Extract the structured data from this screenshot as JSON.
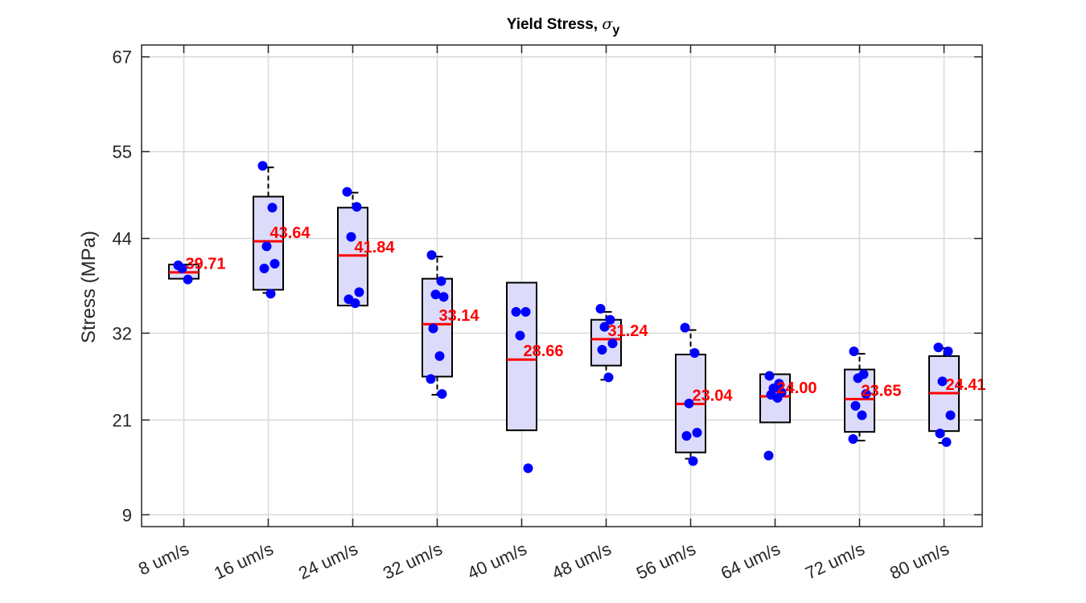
{
  "chart_data": {
    "type": "box",
    "title": "Yield Stress, ",
    "title_symbol": "σ",
    "title_subscript": "y",
    "ylabel": "Stress (MPa)",
    "xlabel": "",
    "ylim": [
      7.5,
      68.5
    ],
    "yticks": [
      9,
      21,
      32,
      44,
      55,
      67
    ],
    "grid": true,
    "colors": {
      "box_fill": "#dcdcfa",
      "box_edge": "#000000",
      "median": "#ff0000",
      "points": "#0000ff",
      "grid": "#d9d9d9"
    },
    "categories": [
      "8 um/s",
      "16 um/s",
      "24 um/s",
      "32 um/s",
      "40 um/s",
      "48 um/s",
      "56 um/s",
      "64 um/s",
      "72 um/s",
      "80 um/s"
    ],
    "boxes": [
      {
        "q1": 38.9,
        "q3": 40.7,
        "median": 39.71,
        "whisker_low": 38.9,
        "whisker_high": 40.7,
        "median_label": "39.71"
      },
      {
        "q1": 37.5,
        "q3": 49.3,
        "median": 43.64,
        "whisker_low": 37.1,
        "whisker_high": 53.0,
        "median_label": "43.64"
      },
      {
        "q1": 35.5,
        "q3": 47.9,
        "median": 41.84,
        "whisker_low": 35.5,
        "whisker_high": 49.8,
        "median_label": "41.84"
      },
      {
        "q1": 26.5,
        "q3": 38.9,
        "median": 33.14,
        "whisker_low": 24.2,
        "whisker_high": 41.7,
        "median_label": "33.14"
      },
      {
        "q1": 19.7,
        "q3": 38.4,
        "median": 28.66,
        "whisker_low": 19.7,
        "whisker_high": 38.4,
        "median_label": "28.66"
      },
      {
        "q1": 27.9,
        "q3": 33.7,
        "median": 31.24,
        "whisker_low": 26.1,
        "whisker_high": 34.7,
        "median_label": "31.24"
      },
      {
        "q1": 16.9,
        "q3": 29.3,
        "median": 23.04,
        "whisker_low": 16.1,
        "whisker_high": 32.4,
        "median_label": "23.04"
      },
      {
        "q1": 20.7,
        "q3": 26.8,
        "median": 24.0,
        "whisker_low": 20.7,
        "whisker_high": 26.8,
        "median_label": "24.00"
      },
      {
        "q1": 19.5,
        "q3": 27.4,
        "median": 23.65,
        "whisker_low": 18.4,
        "whisker_high": 29.4,
        "median_label": "23.65"
      },
      {
        "q1": 19.6,
        "q3": 29.1,
        "median": 24.41,
        "whisker_low": 18.1,
        "whisker_high": 30.1,
        "median_label": "24.41"
      }
    ],
    "points": [
      [
        40.6,
        38.8,
        40.2
      ],
      [
        53.2,
        47.9,
        43.0,
        40.8,
        40.2,
        37.0
      ],
      [
        49.9,
        48.0,
        44.2,
        37.2,
        36.3,
        35.8
      ],
      [
        41.9,
        38.6,
        36.9,
        36.6,
        32.6,
        29.1,
        26.2,
        24.3
      ],
      [
        34.7,
        34.7,
        31.7,
        14.9
      ],
      [
        35.1,
        33.7,
        32.8,
        30.7,
        29.9,
        26.4
      ],
      [
        32.7,
        29.5,
        23.1,
        19.4,
        19.0,
        15.8
      ],
      [
        26.6,
        25.6,
        25.0,
        24.5,
        24.2,
        23.8,
        16.5
      ],
      [
        29.7,
        26.8,
        26.3,
        24.3,
        22.8,
        21.6,
        18.6
      ],
      [
        30.2,
        29.7,
        25.9,
        21.6,
        19.3,
        18.2
      ]
    ]
  }
}
